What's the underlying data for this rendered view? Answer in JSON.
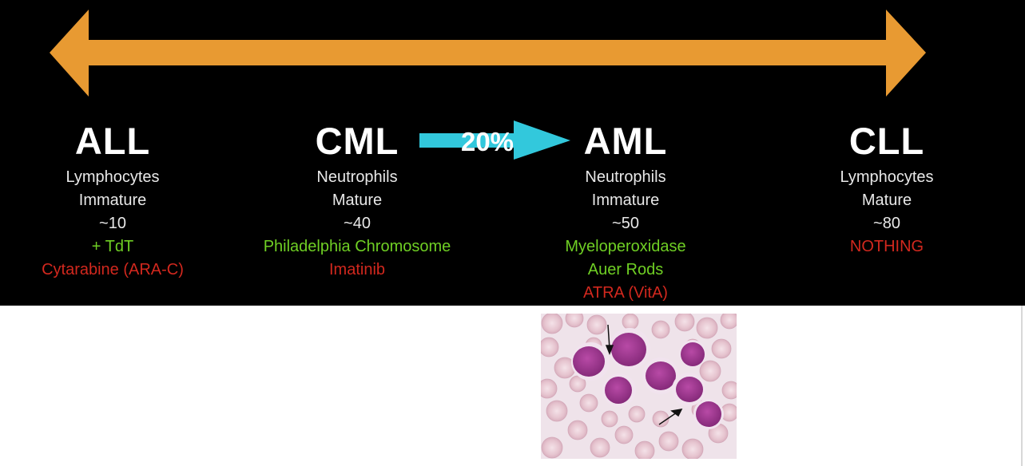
{
  "colors": {
    "background": "#000000",
    "arrow": "#e89a32",
    "transition_arrow": "#32c8dc",
    "title_text": "#ffffff",
    "body_text": "#e8e8e8",
    "positive_marker": "#6fcf24",
    "treatment": "#d2281e",
    "cell_nucleus": "#9c2f8c",
    "cell_cytoplasm": "#f3e6f0",
    "red_cell": "#e9c7d2"
  },
  "spectrum_arrow": {
    "icon": "double-headed-arrow"
  },
  "transition": {
    "label": "20%",
    "icon": "right-arrow"
  },
  "columns": [
    {
      "name": "ALL",
      "cell": "Lymphocytes",
      "maturity": "Immature",
      "age": "~10",
      "markers": [
        "+ TdT"
      ],
      "treatments": [
        "Cytarabine (ARA-C)"
      ]
    },
    {
      "name": "CML",
      "cell": "Neutrophils",
      "maturity": "Mature",
      "age": "~40",
      "markers": [
        "Philadelphia Chromosome"
      ],
      "treatments": [
        "Imatinib"
      ]
    },
    {
      "name": "AML",
      "cell": "Neutrophils",
      "maturity": "Immature",
      "age": "~50",
      "markers": [
        "Myeloperoxidase",
        "Auer Rods"
      ],
      "treatments": [
        "ATRA (VitA)"
      ]
    },
    {
      "name": "CLL",
      "cell": "Lymphocytes",
      "maturity": "Mature",
      "age": "~80",
      "markers": [],
      "treatments": [
        "NOTHING"
      ]
    }
  ],
  "micrograph": {
    "subject": "blood-smear-blast-cells",
    "annotations": [
      "arrow",
      "arrow"
    ]
  }
}
